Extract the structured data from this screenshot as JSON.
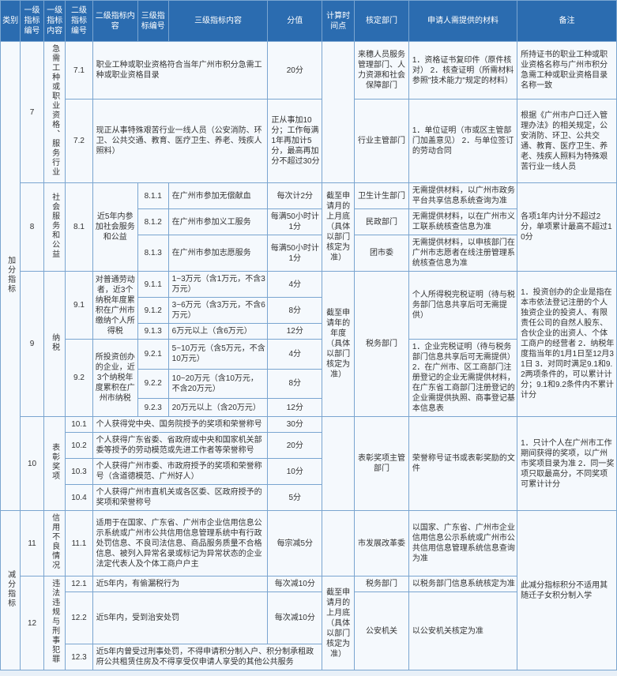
{
  "headers": {
    "cat": "类别",
    "l1n": "一级指标编号",
    "l1c": "一级指标内容",
    "l2n": "二级指标编号",
    "l2c": "二级指标内容",
    "l3n": "三级指标编号",
    "l3c": "三级指标内容",
    "score": "分值",
    "time": "计算时间点",
    "dept": "核定部门",
    "mat": "申请人需提供的材料",
    "note": "备注"
  },
  "cat_add": "加分指标",
  "cat_sub": "减分指标",
  "r7": {
    "l1n": "7",
    "l1c": "急需工种或职业资格、服务行业",
    "r71": {
      "l2n": "7.1",
      "l3c": "职业工种或职业资格符合当年广州市积分急需工种或职业资格目录",
      "score": "20分",
      "dept": "来穗人员服务管理部门、人力资源和社会保障部门",
      "mat": "1．资格证书复印件（原件核对）\n2．核查证明（所需材料参照\"技术能力\"规定的材料）",
      "note": "所持证书的职业工种或职业资格名称与广州市积分急需工种或职业资格目录名称一致"
    },
    "r72": {
      "l2n": "7.2",
      "l3c": "现正从事特殊艰苦行业一线人员（公安消防、环卫、公共交通、教育、医疗卫生、养老、残疾人照料）",
      "score": "正从事加10分；工作每满1年再加计5分，最高再加分不超过30分",
      "dept": "行业主管部门",
      "mat": "1．单位证明（市或区主管部门加盖意见）\n2．与单位签订的劳动合同",
      "note": "根据《广州市户口迁入管理办法》的相关规定，公安消防、环卫、公共交通、教育、医疗卫生、养老、残疾人照料为特殊艰苦行业一线人员"
    }
  },
  "r8": {
    "l1n": "8",
    "l1c": "社会服务和公益",
    "l2n": "8.1",
    "l2c": "近5年内参加社会服务和公益",
    "time": "截至申请月的上月底（具体以部门核定为准）",
    "note": "各项1年内计分不超过2分，单项累计最高不超过10分",
    "r811": {
      "l3n": "8.1.1",
      "l3c": "在广州市参加无偿献血",
      "score": "每次计2分",
      "dept": "卫生计生部门",
      "mat": "无需提供材料，以广州市政务平台共享信息系统查询为准"
    },
    "r812": {
      "l3n": "8.1.2",
      "l3c": "在广州市参加义工服务",
      "score": "每满50小时计1分",
      "dept": "民政部门",
      "mat": "无需提供材料，以在广州市义工联系统核查信息为准"
    },
    "r813": {
      "l3n": "8.1.3",
      "l3c": "在广州市参加志愿服务",
      "score": "每满50小时计1分",
      "dept": "团市委",
      "mat": "无需提供材料，以申核部门在广州市志愿者在线注册管理系统核查信息为准"
    }
  },
  "r9": {
    "l1n": "9",
    "l1c": "纳税",
    "time": "截至申请年的年度（具体以部门核定为准）",
    "dept": "税务部门",
    "r91": {
      "l2n": "9.1",
      "l2c": "对普通劳动者，近3个纳税年度累积在广州市缴纳个人所得税",
      "mat": "个人所得税完税证明（待与税务部门信息共享后可无需提供）",
      "r911": {
        "l3n": "9.1.1",
        "l3c": "1~3万元（含1万元，不含3万元）",
        "score": "4分"
      },
      "r912": {
        "l3n": "9.1.2",
        "l3c": "3~6万元（含3万元，不含6万元）",
        "score": "8分"
      },
      "r913": {
        "l3n": "9.1.3",
        "l3c": "6万元以上（含6万元）",
        "score": "12分"
      }
    },
    "r92": {
      "l2n": "9.2",
      "l2c": "所投资创办的企业，近3个纳税年度累积在广州市纳税",
      "mat": "1．企业完税证明（待与税务部门信息共享后可无需提供）\n2．在广州市、区工商部门注册登记的企业无需提供材料，在广东省工商部门注册登记的企业需提供执照、商事登记基本信息表",
      "r921": {
        "l3n": "9.2.1",
        "l3c": "5~10万元（含5万元，不含10万元）",
        "score": "4分"
      },
      "r922": {
        "l3n": "9.2.2",
        "l3c": "10~20万元（含10万元，不含20万元）",
        "score": "8分"
      },
      "r923": {
        "l3n": "9.2.3",
        "l3c": "20万元以上（含20万元）",
        "score": "12分"
      }
    },
    "note": "1．投资创办的企业是指在本市依法登记注册的个人独资企业的投资人、有限责任公司的自然人股东、合伙企业的出资人、个体工商户的经营者\n2．纳税年度指当年的1月1日至12月31日\n3．对同时满足9.1和9.2两项条件的，可以累计计分；9.1和9.2条件内不累计计分"
  },
  "r10": {
    "l1n": "10",
    "l1c": "表彰奖项",
    "dept": "表彰奖项主管部门",
    "mat": "荣誉称号证书或表彰奖励的文件",
    "note": "1．只计个人在广州市工作期间获得的奖项，以广州市奖项目录为准\n2．同一奖项只取最高分，不同奖项可累计计分",
    "r101": {
      "l2n": "10.1",
      "l3c": "个人获得党中央、国务院授予的奖项和荣誉称号",
      "score": "30分"
    },
    "r102": {
      "l2n": "10.2",
      "l3c": "个人获得广东省委、省政府或中央和国家机关部委等授予的劳动模范或先进工作者等荣誉称号",
      "score": "20分"
    },
    "r103": {
      "l2n": "10.3",
      "l3c": "个人获得广州市委、市政府授予的奖项和荣誉称号（含道德模范、广州好人）",
      "score": "10分"
    },
    "r104": {
      "l2n": "10.4",
      "l3c": "个人获得广州市直机关或各区委、区政府授予的奖项和荣誉称号",
      "score": "5分"
    }
  },
  "r11": {
    "l1n": "11",
    "l1c": "信用不良情况",
    "l2n": "11.1",
    "l3c": "适用于在国家、广东省、广州市企业信用信息公示系统或广州市公共信用信息管理系统中有行政处罚信息、不良司法信息、商品服务质量不合格信息、被列入异常名录或标记为异常状态的企业法定代表人及个体工商户户主",
    "score": "每宗减5分",
    "dept": "市发展改革委",
    "mat": "以国家、广东省、广州市企业信用信息公示系统或广州市公共信用信息管理系统信息查询为准",
    "note": "此减分指标积分不适用其随迁子女积分制入学"
  },
  "r12": {
    "l1n": "12",
    "l1c": "违法违规与刑事犯罪",
    "time": "截至申请月的上月底（具体以部门核定为准）",
    "r121": {
      "l2n": "12.1",
      "l3c": "近5年内，有偷漏税行为",
      "score": "每次减10分",
      "dept": "税务部门",
      "mat": "以税务部门信息系统核定为准"
    },
    "r122": {
      "l2n": "12.2",
      "l3c": "近5年内，受到治安处罚",
      "score": "每次减10分"
    },
    "r123": {
      "l2n": "12.3",
      "l3c": "近5年内曾受过刑事处罚，不得申请积分制入户、积分制承租政府公共租赁住房及不得享受仅申请人享受的其他公共服务",
      "dept": "公安机关",
      "mat": "以公安机关核定为准"
    }
  }
}
